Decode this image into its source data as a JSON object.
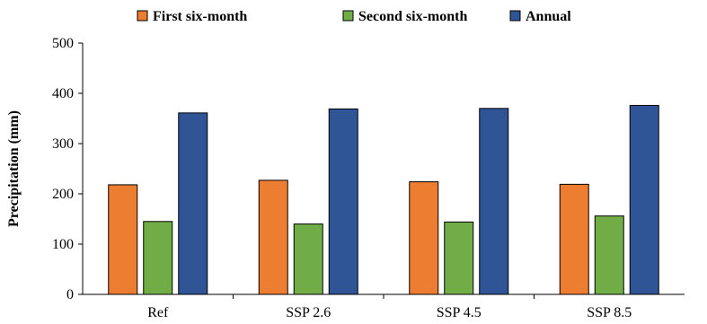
{
  "chart_data": {
    "type": "bar",
    "title": "",
    "xlabel": "",
    "ylabel": "Precipitation (mm)",
    "ylim": [
      0,
      500
    ],
    "yticks": [
      0,
      100,
      200,
      300,
      400,
      500
    ],
    "grid": false,
    "legend_position": "top",
    "categories": [
      "Ref",
      "SSP 2.6",
      "SSP 4.5",
      "SSP 8.5"
    ],
    "series": [
      {
        "name": "First six-month",
        "color": "#ed7d31",
        "values": [
          218,
          227,
          224,
          219
        ]
      },
      {
        "name": "Second six-month",
        "color": "#70ad47",
        "values": [
          145,
          140,
          144,
          156
        ]
      },
      {
        "name": "Annual",
        "color": "#2f5597",
        "values": [
          361,
          369,
          370,
          376
        ]
      }
    ]
  }
}
